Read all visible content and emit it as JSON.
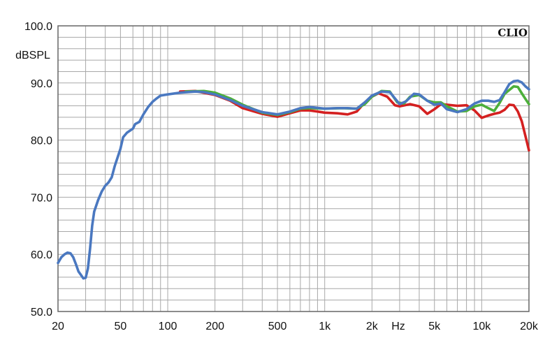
{
  "chart_data": {
    "type": "line",
    "brand": "CLIO",
    "ylabel": "dBSPL",
    "xlabel": "Hz",
    "x_scale": "log",
    "xlim": [
      20,
      20000
    ],
    "ylim": [
      50,
      100
    ],
    "grid": true,
    "x_ticks": [
      {
        "value": 20,
        "label": "20"
      },
      {
        "value": 50,
        "label": "50"
      },
      {
        "value": 100,
        "label": "100"
      },
      {
        "value": 200,
        "label": "200"
      },
      {
        "value": 500,
        "label": "500"
      },
      {
        "value": 1000,
        "label": "1k"
      },
      {
        "value": 2000,
        "label": "2k"
      },
      {
        "value": 5000,
        "label": "5k"
      },
      {
        "value": 10000,
        "label": "10k"
      },
      {
        "value": 20000,
        "label": "20k"
      }
    ],
    "y_ticks": [
      {
        "value": 50,
        "label": "50.0"
      },
      {
        "value": 60,
        "label": "60.0"
      },
      {
        "value": 70,
        "label": "70.0"
      },
      {
        "value": 80,
        "label": "80.0"
      },
      {
        "value": 90,
        "label": "90.0"
      },
      {
        "value": 100,
        "label": "100.0"
      }
    ],
    "colors": {
      "red": "#d42020",
      "green": "#4caf3a",
      "blue": "#4a78c0",
      "grid": "#a8a8a8",
      "frame": "#666666"
    },
    "series": [
      {
        "color": "red",
        "points": [
          [
            120,
            88.5
          ],
          [
            150,
            88.6
          ],
          [
            200,
            87.9
          ],
          [
            250,
            86.9
          ],
          [
            300,
            85.6
          ],
          [
            400,
            84.6
          ],
          [
            500,
            84.1
          ],
          [
            600,
            84.7
          ],
          [
            700,
            85.2
          ],
          [
            800,
            85.2
          ],
          [
            900,
            85.0
          ],
          [
            1000,
            84.8
          ],
          [
            1200,
            84.7
          ],
          [
            1400,
            84.5
          ],
          [
            1600,
            85.0
          ],
          [
            1800,
            86.6
          ],
          [
            2000,
            87.6
          ],
          [
            2200,
            88.2
          ],
          [
            2500,
            87.6
          ],
          [
            2800,
            86.1
          ],
          [
            3000,
            85.9
          ],
          [
            3500,
            86.3
          ],
          [
            4000,
            85.9
          ],
          [
            4500,
            84.6
          ],
          [
            5000,
            85.4
          ],
          [
            5500,
            86.3
          ],
          [
            6000,
            86.2
          ],
          [
            7000,
            86.0
          ],
          [
            8000,
            86.1
          ],
          [
            9000,
            85.2
          ],
          [
            10000,
            83.9
          ],
          [
            11000,
            84.3
          ],
          [
            12000,
            84.6
          ],
          [
            13000,
            84.8
          ],
          [
            14000,
            85.3
          ],
          [
            15000,
            86.2
          ],
          [
            16000,
            86.1
          ],
          [
            17000,
            85.0
          ],
          [
            18000,
            83.3
          ],
          [
            19000,
            80.7
          ],
          [
            20000,
            78.2
          ]
        ]
      },
      {
        "color": "green",
        "points": [
          [
            130,
            88.5
          ],
          [
            170,
            88.6
          ],
          [
            200,
            88.3
          ],
          [
            250,
            87.3
          ],
          [
            300,
            86.2
          ],
          [
            400,
            84.8
          ],
          [
            500,
            84.4
          ],
          [
            600,
            84.9
          ],
          [
            700,
            85.5
          ],
          [
            800,
            85.6
          ],
          [
            1000,
            85.5
          ],
          [
            1300,
            85.6
          ],
          [
            1600,
            85.5
          ],
          [
            1800,
            86.3
          ],
          [
            2000,
            87.6
          ],
          [
            2300,
            88.6
          ],
          [
            2600,
            88.5
          ],
          [
            2900,
            86.6
          ],
          [
            3200,
            86.4
          ],
          [
            3500,
            87.6
          ],
          [
            4000,
            87.9
          ],
          [
            4500,
            86.9
          ],
          [
            5000,
            86.6
          ],
          [
            5500,
            86.6
          ],
          [
            6000,
            85.9
          ],
          [
            7000,
            85.0
          ],
          [
            8000,
            85.1
          ],
          [
            9000,
            85.9
          ],
          [
            10000,
            86.2
          ],
          [
            11000,
            85.6
          ],
          [
            12000,
            85.1
          ],
          [
            13000,
            86.5
          ],
          [
            14000,
            88.1
          ],
          [
            16000,
            89.4
          ],
          [
            17000,
            89.3
          ],
          [
            18000,
            88.2
          ],
          [
            19000,
            87.2
          ],
          [
            20000,
            86.3
          ]
        ]
      },
      {
        "color": "blue",
        "points": [
          [
            20,
            58.5
          ],
          [
            21,
            59.5
          ],
          [
            22,
            60.0
          ],
          [
            23,
            60.3
          ],
          [
            24,
            60.2
          ],
          [
            25,
            59.5
          ],
          [
            26,
            58.3
          ],
          [
            27,
            57.0
          ],
          [
            28,
            56.4
          ],
          [
            29,
            55.8
          ],
          [
            30,
            55.9
          ],
          [
            31,
            57.5
          ],
          [
            32,
            61.0
          ],
          [
            33,
            65.0
          ],
          [
            34,
            67.5
          ],
          [
            36,
            69.5
          ],
          [
            38,
            71.0
          ],
          [
            40,
            72.0
          ],
          [
            42,
            72.6
          ],
          [
            44,
            73.5
          ],
          [
            46,
            75.5
          ],
          [
            48,
            77.0
          ],
          [
            50,
            78.5
          ],
          [
            52,
            80.5
          ],
          [
            55,
            81.3
          ],
          [
            60,
            82.0
          ],
          [
            62,
            82.8
          ],
          [
            66,
            83.2
          ],
          [
            70,
            84.5
          ],
          [
            75,
            85.8
          ],
          [
            80,
            86.7
          ],
          [
            85,
            87.3
          ],
          [
            90,
            87.8
          ],
          [
            100,
            88.0
          ],
          [
            120,
            88.3
          ],
          [
            150,
            88.5
          ],
          [
            170,
            88.4
          ],
          [
            200,
            88.0
          ],
          [
            250,
            87.0
          ],
          [
            300,
            86.0
          ],
          [
            400,
            84.9
          ],
          [
            500,
            84.5
          ],
          [
            600,
            85.0
          ],
          [
            700,
            85.6
          ],
          [
            800,
            85.8
          ],
          [
            1000,
            85.5
          ],
          [
            1200,
            85.6
          ],
          [
            1400,
            85.6
          ],
          [
            1600,
            85.5
          ],
          [
            1800,
            86.6
          ],
          [
            2000,
            87.8
          ],
          [
            2300,
            88.5
          ],
          [
            2600,
            88.4
          ],
          [
            2800,
            87.3
          ],
          [
            3000,
            86.3
          ],
          [
            3300,
            86.8
          ],
          [
            3700,
            88.1
          ],
          [
            4000,
            88.0
          ],
          [
            4500,
            86.9
          ],
          [
            5000,
            86.2
          ],
          [
            5500,
            86.4
          ],
          [
            6000,
            85.4
          ],
          [
            7000,
            84.9
          ],
          [
            8000,
            85.4
          ],
          [
            9000,
            86.4
          ],
          [
            10000,
            86.9
          ],
          [
            11000,
            86.9
          ],
          [
            12000,
            86.7
          ],
          [
            13000,
            87.0
          ],
          [
            14000,
            88.4
          ],
          [
            15000,
            89.8
          ],
          [
            16000,
            90.3
          ],
          [
            17000,
            90.4
          ],
          [
            18000,
            90.1
          ],
          [
            19000,
            89.4
          ],
          [
            20000,
            88.9
          ]
        ]
      }
    ]
  }
}
